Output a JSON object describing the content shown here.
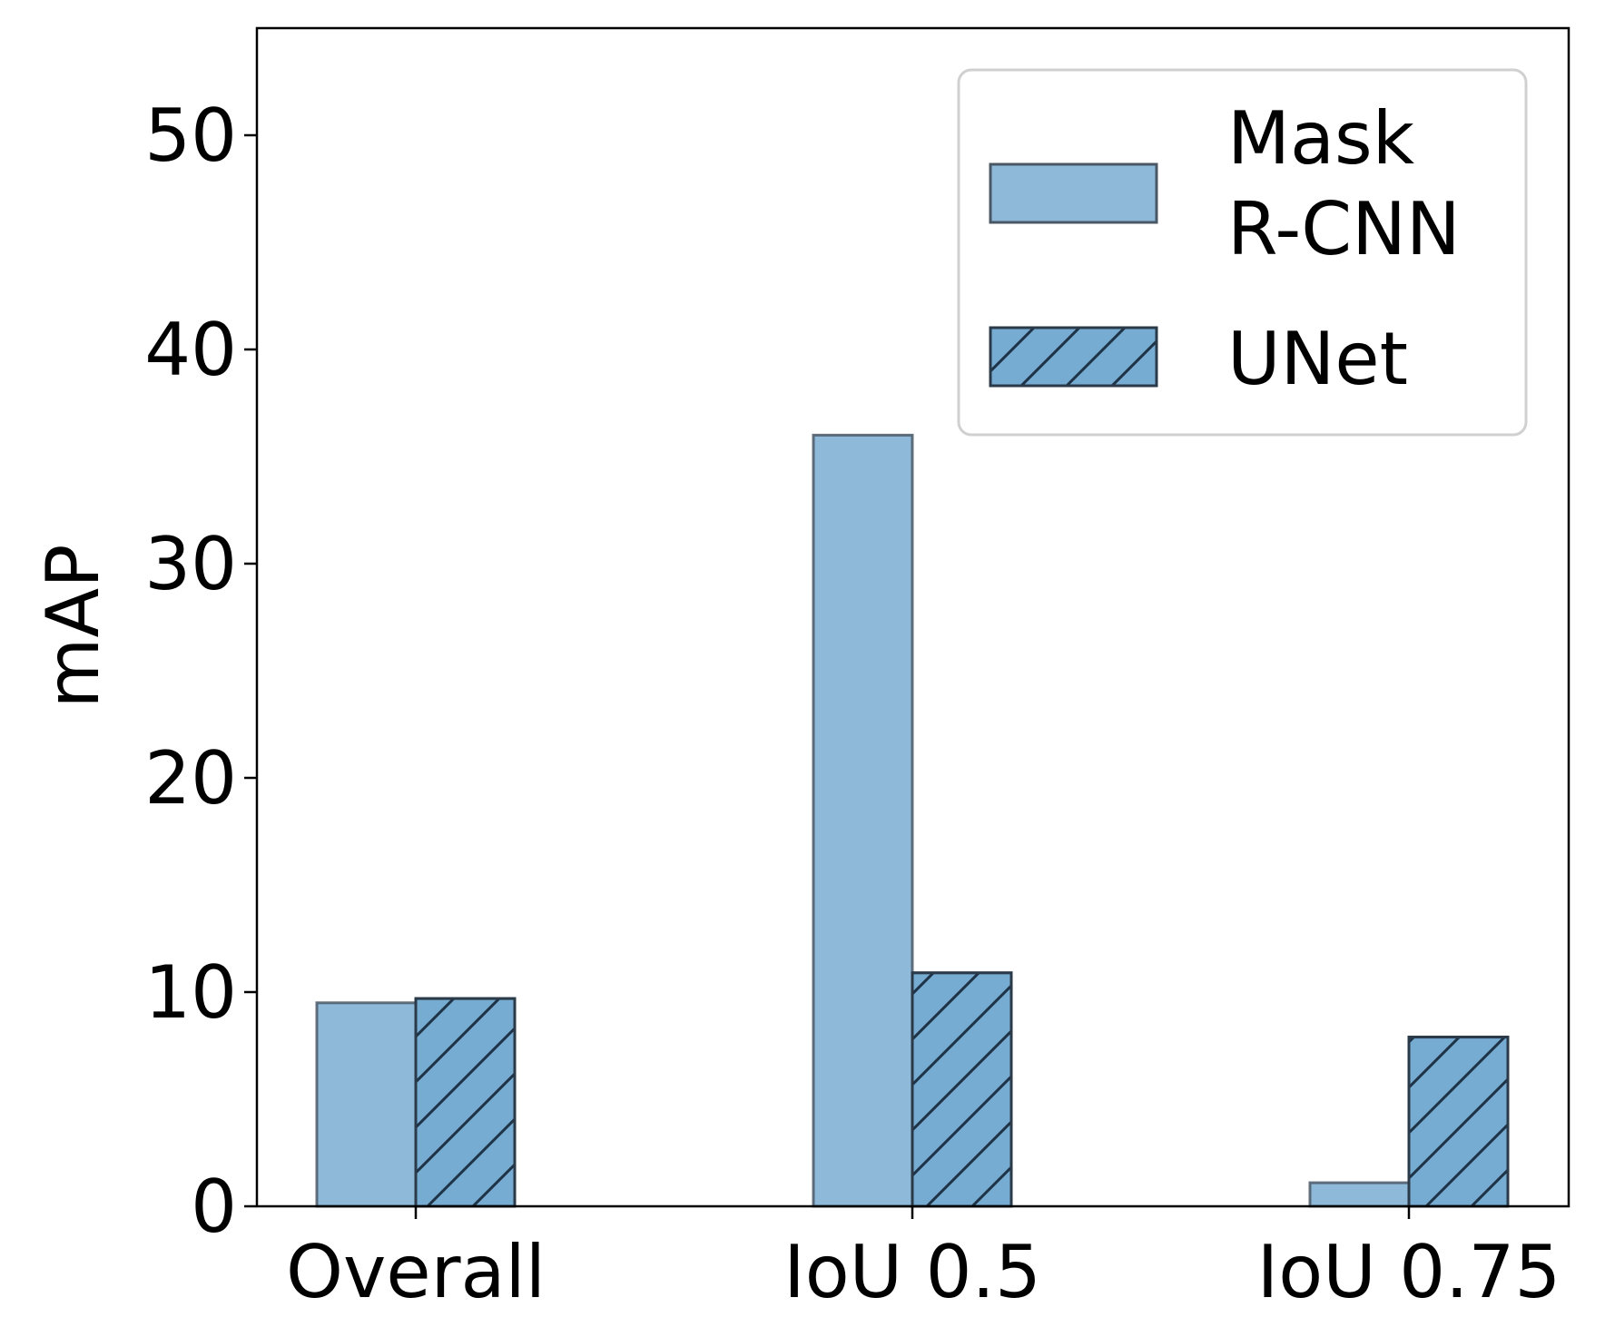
{
  "chart_data": {
    "type": "bar",
    "title": "",
    "xlabel": "",
    "ylabel": "mAP",
    "ylim": [
      0,
      55
    ],
    "yticks": [
      0,
      10,
      20,
      30,
      40,
      50
    ],
    "categories": [
      "Overall",
      "IoU 0.5",
      "IoU 0.75"
    ],
    "series": [
      {
        "name": "Mask\nR-CNN",
        "values": [
          9.5,
          36.0,
          1.1
        ],
        "color": "#8fb9d9",
        "hatch": false
      },
      {
        "name": "UNet",
        "values": [
          9.7,
          10.9,
          7.9
        ],
        "color": "#76abd2",
        "hatch": true
      }
    ],
    "legend": {
      "position": "top-right"
    },
    "grid": false
  }
}
